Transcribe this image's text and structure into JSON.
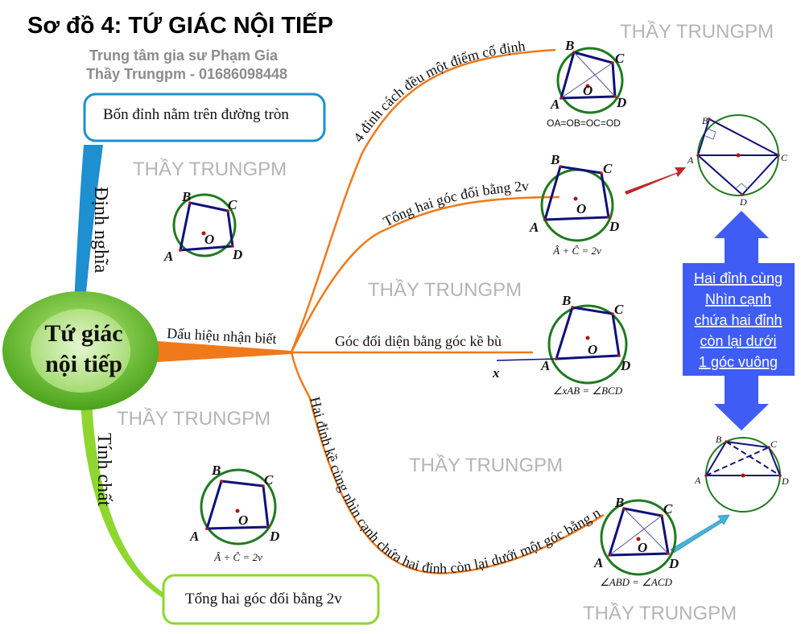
{
  "header": {
    "title": "Sơ đồ 4: TỨ GIÁC NỘI TIẾP",
    "subtitle_1": "Trung tâm gia sư Phạm Gia",
    "subtitle_2": "Thầy Trungpm - 01686098448"
  },
  "watermark": "THẦY TRUNGPM",
  "center_node": {
    "line1": "Tứ giác",
    "line2": "nội tiếp"
  },
  "definition": {
    "branch_label": "Định nghĩa",
    "box_text": "Bốn đỉnh nằm trên đường tròn"
  },
  "property": {
    "branch_label": "Tính chất",
    "box_text": "Tổng hai góc đối bằng 2v"
  },
  "signs": {
    "branch_label": "Dấu hiệu nhận biết",
    "items": [
      {
        "label": "4 đỉnh cách đều một điểm cố định"
      },
      {
        "label": "Tổng hai góc đối bằng 2v"
      },
      {
        "label": "Góc đối diện bằng góc kề bù"
      },
      {
        "label": "Hai đỉnh kề cùng nhìn cạnh chứa hai đỉnh còn lại dưới một góc bằng nhau"
      }
    ]
  },
  "figures": {
    "equidistant": {
      "B": "B",
      "C": "C",
      "A": "A",
      "D": "D",
      "O": "O",
      "caption": "OA=OB=OC=OD"
    },
    "opposite_sum": {
      "B": "B",
      "C": "C",
      "A": "A",
      "D": "D",
      "O": "O",
      "caption": "Â + Ĉ = 2v"
    },
    "definition": {
      "B": "B",
      "C": "C",
      "A": "A",
      "D": "D",
      "O": "O"
    },
    "exterior_angle": {
      "B": "B",
      "C": "C",
      "A": "A",
      "D": "D",
      "O": "O",
      "x": "x",
      "caption": "∠xAB = ∠BCD"
    },
    "property": {
      "B": "B",
      "C": "C",
      "A": "A",
      "D": "D",
      "O": "O",
      "caption": "Â + Ĉ = 2v"
    },
    "equal_angles": {
      "B": "B",
      "C": "C",
      "A": "A",
      "D": "D",
      "O": "O",
      "caption": "∠ABD = ∠ACD"
    },
    "right_top": {
      "B": "B",
      "C": "C",
      "A": "A",
      "D": "D"
    },
    "right_bottom": {
      "B": "B",
      "C": "C",
      "A": "A",
      "D": "D"
    }
  },
  "right_angle_note": {
    "lines": [
      "Hai đỉnh cùng",
      "Nhìn cạnh",
      "chứa hai đỉnh",
      "còn lại dưới",
      "1 góc vuông"
    ]
  },
  "colors": {
    "definition_branch": "#1e8fd0",
    "property_branch": "#8fd630",
    "signs_branch": "#f07a1a",
    "circle": "#1f7a1f",
    "quad": "#10107a",
    "note_arrow": "#3f5cf5"
  }
}
